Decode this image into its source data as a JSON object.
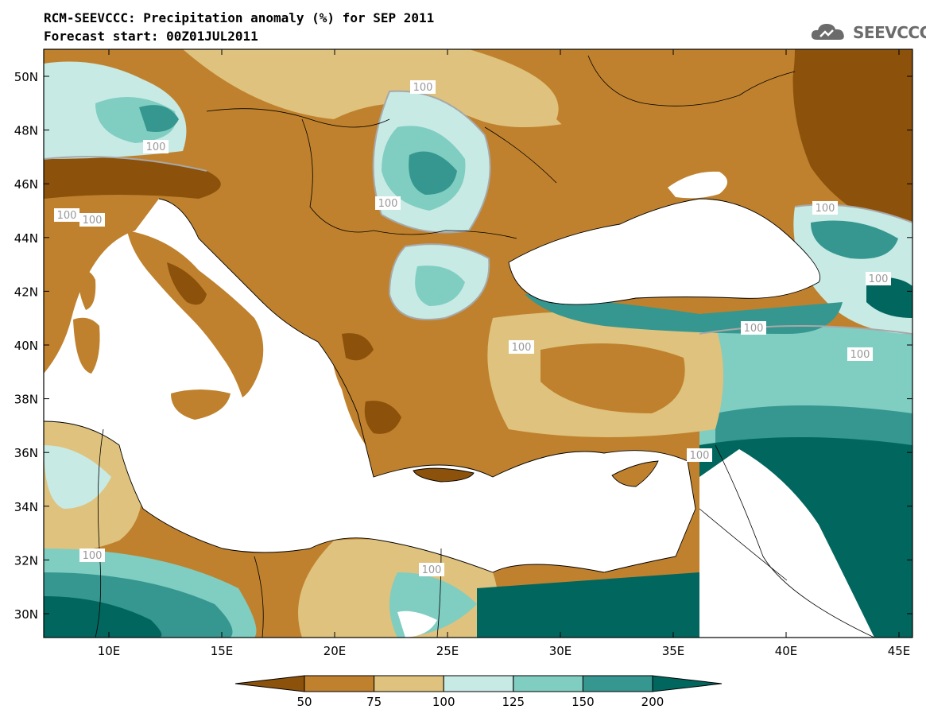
{
  "title": "RCM-SEEVCCC: Precipitation anomaly (%) for SEP 2011",
  "subtitle": "Forecast start: 00Z01JUL2011",
  "logo_text": "SEEVCCC",
  "colors": {
    "sea": "#ffffff",
    "land_bins": [
      "#8c510a",
      "#bf812d",
      "#dfc27d",
      "#c7eae5",
      "#80cdc1",
      "#35978f",
      "#01665e"
    ]
  },
  "axes": {
    "lat_labels": [
      "50N",
      "48N",
      "46N",
      "44N",
      "42N",
      "40N",
      "38N",
      "36N",
      "34N",
      "32N",
      "30N"
    ],
    "lon_labels": [
      "10E",
      "15E",
      "20E",
      "25E",
      "30E",
      "35E",
      "40E",
      "45E"
    ]
  },
  "contour_labels": [
    "100",
    "100",
    "100",
    "100",
    "100",
    "100",
    "100",
    "100",
    "100",
    "100",
    "100",
    "100",
    "100"
  ],
  "colorbar": {
    "ticks": [
      "50",
      "75",
      "100",
      "125",
      "150",
      "200"
    ],
    "colors": [
      "#8c510a",
      "#bf812d",
      "#dfc27d",
      "#c7eae5",
      "#80cdc1",
      "#35978f",
      "#01665e"
    ]
  }
}
